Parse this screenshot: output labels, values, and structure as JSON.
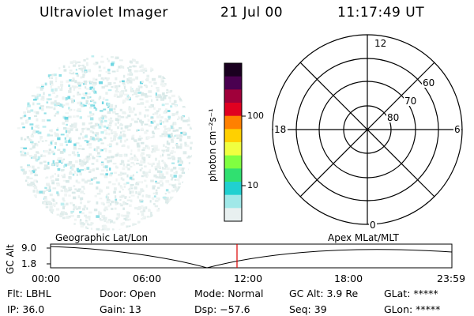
{
  "header": {
    "title": "Ultraviolet Imager",
    "date": "21 Jul 00",
    "time": "11:17:49 UT"
  },
  "colorbar": {
    "unit_label": "photon cm⁻²s⁻¹",
    "tick_labels": [
      "100",
      "10"
    ],
    "colors": [
      "#1a0020",
      "#4a0050",
      "#a0003a",
      "#e00020",
      "#ff8000",
      "#ffd000",
      "#f0ff40",
      "#80ff40",
      "#30e070",
      "#20d0d0",
      "#a0e8e8",
      "#e8f0f0"
    ]
  },
  "polar": {
    "mlt_labels": [
      "12",
      "18",
      "6",
      "0"
    ],
    "lat_labels": [
      "60",
      "70",
      "80"
    ]
  },
  "strip": {
    "left_label": "Geographic Lat/Lon",
    "right_label": "Apex MLat/MLT",
    "y_axis_label": "GC Alt",
    "y_ticks": [
      "9.0",
      "1.8"
    ],
    "x_ticks": [
      "00:00",
      "06:00",
      "12:00",
      "18:00",
      "23:59"
    ],
    "marker_color": "#dd0000"
  },
  "footer": {
    "flt": "Flt: LBHL",
    "ip": "IP: 36.0",
    "door": "Door: Open",
    "gain": "Gain: 13",
    "mode": "Mode: Normal",
    "dsp": "Dsp:  −57.6",
    "gc_alt": "GC Alt: 3.9 Re",
    "seq": "Seq: 39",
    "glat": "GLat: *****",
    "glon": "GLon: *****"
  }
}
